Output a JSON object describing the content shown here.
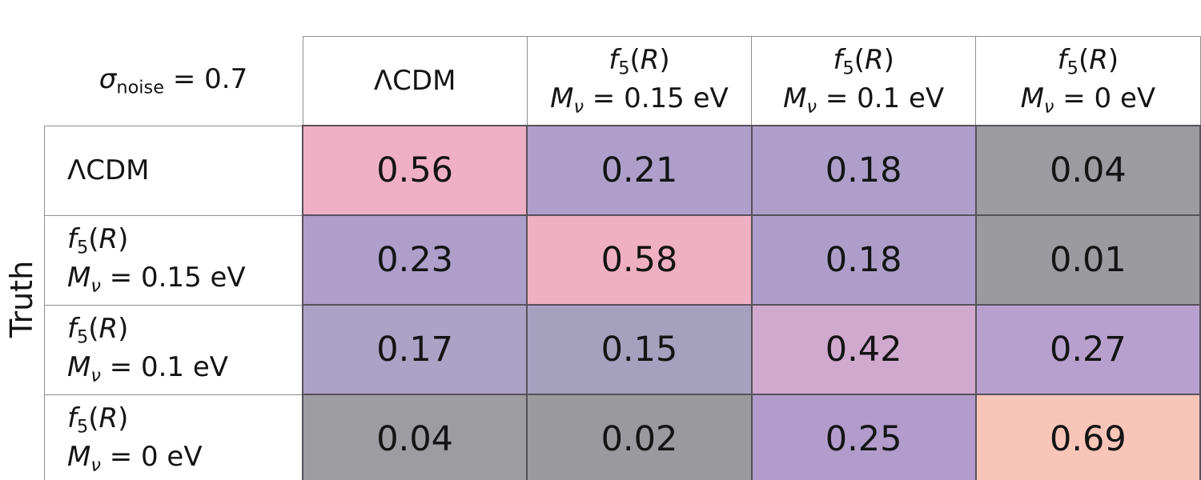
{
  "figure": {
    "truth_label": "Truth",
    "corner_title_segments": [
      {
        "t": "σ",
        "s": "i"
      },
      {
        "t": "noise",
        "s": "sub"
      },
      {
        "t": " = 0.7",
        "s": "n"
      }
    ],
    "columns": [
      {
        "segments": [
          {
            "t": "ΛCDM",
            "s": "n"
          }
        ]
      },
      {
        "segments": [
          {
            "t": "f",
            "s": "i"
          },
          {
            "t": "5",
            "s": "sub"
          },
          {
            "t": "(",
            "s": "n"
          },
          {
            "t": "R",
            "s": "i"
          },
          {
            "t": ")",
            "s": "n"
          },
          {
            "s": "br"
          },
          {
            "t": "M",
            "s": "i"
          },
          {
            "t": "ν",
            "s": "subi"
          },
          {
            "t": " = 0.15 eV",
            "s": "n"
          }
        ]
      },
      {
        "segments": [
          {
            "t": "f",
            "s": "i"
          },
          {
            "t": "5",
            "s": "sub"
          },
          {
            "t": "(",
            "s": "n"
          },
          {
            "t": "R",
            "s": "i"
          },
          {
            "t": ")",
            "s": "n"
          },
          {
            "s": "br"
          },
          {
            "t": "M",
            "s": "i"
          },
          {
            "t": "ν",
            "s": "subi"
          },
          {
            "t": " = 0.1 eV",
            "s": "n"
          }
        ]
      },
      {
        "segments": [
          {
            "t": "f",
            "s": "i"
          },
          {
            "t": "5",
            "s": "sub"
          },
          {
            "t": "(",
            "s": "n"
          },
          {
            "t": "R",
            "s": "i"
          },
          {
            "t": ")",
            "s": "n"
          },
          {
            "s": "br"
          },
          {
            "t": "M",
            "s": "i"
          },
          {
            "t": "ν",
            "s": "subi"
          },
          {
            "t": " = 0 eV",
            "s": "n"
          }
        ]
      }
    ],
    "rows": [
      {
        "label_segments": [
          {
            "t": "ΛCDM",
            "s": "n"
          }
        ],
        "cells": [
          {
            "value": "0.56",
            "bg": "#efb0c5"
          },
          {
            "value": "0.21",
            "bg": "#ae9fca"
          },
          {
            "value": "0.18",
            "bg": "#ad9fc9"
          },
          {
            "value": "0.04",
            "bg": "#9b9ba0"
          }
        ]
      },
      {
        "label_segments": [
          {
            "t": "f",
            "s": "i"
          },
          {
            "t": "5",
            "s": "sub"
          },
          {
            "t": "(",
            "s": "n"
          },
          {
            "t": "R",
            "s": "i"
          },
          {
            "t": ")",
            "s": "n"
          },
          {
            "s": "br"
          },
          {
            "t": "M",
            "s": "i"
          },
          {
            "t": "ν",
            "s": "subi"
          },
          {
            "t": " = 0.15 eV",
            "s": "n"
          }
        ],
        "cells": [
          {
            "value": "0.23",
            "bg": "#ae9eca"
          },
          {
            "value": "0.58",
            "bg": "#f0b0c4"
          },
          {
            "value": "0.18",
            "bg": "#ad9ec9"
          },
          {
            "value": "0.01",
            "bg": "#9a9a9f"
          }
        ]
      },
      {
        "label_segments": [
          {
            "t": "f",
            "s": "i"
          },
          {
            "t": "5",
            "s": "sub"
          },
          {
            "t": "(",
            "s": "n"
          },
          {
            "t": "R",
            "s": "i"
          },
          {
            "t": ")",
            "s": "n"
          },
          {
            "s": "br"
          },
          {
            "t": "M",
            "s": "i"
          },
          {
            "t": "ν",
            "s": "subi"
          },
          {
            "t": " = 0.1 eV",
            "s": "n"
          }
        ],
        "cells": [
          {
            "value": "0.17",
            "bg": "#aba3c5"
          },
          {
            "value": "0.15",
            "bg": "#a6a0bf"
          },
          {
            "value": "0.42",
            "bg": "#d0a9ce"
          },
          {
            "value": "0.27",
            "bg": "#b7a0cd"
          }
        ]
      },
      {
        "label_segments": [
          {
            "t": "f",
            "s": "i"
          },
          {
            "t": "5",
            "s": "sub"
          },
          {
            "t": "(",
            "s": "n"
          },
          {
            "t": "R",
            "s": "i"
          },
          {
            "t": ")",
            "s": "n"
          },
          {
            "s": "br"
          },
          {
            "t": "M",
            "s": "i"
          },
          {
            "t": "ν",
            "s": "subi"
          },
          {
            "t": " = 0 eV",
            "s": "n"
          }
        ],
        "cells": [
          {
            "value": "0.04",
            "bg": "#9c9ca1"
          },
          {
            "value": "0.02",
            "bg": "#99999e"
          },
          {
            "value": "0.25",
            "bg": "#b19ccb"
          },
          {
            "value": "0.69",
            "bg": "#fac5b9"
          }
        ]
      }
    ]
  },
  "chart_data": {
    "type": "heatmap",
    "title": "σ_noise = 0.7",
    "xlabel": "",
    "ylabel": "Truth",
    "columns": [
      "ΛCDM",
      "f5(R) Mν = 0.15 eV",
      "f5(R) Mν = 0.1 eV",
      "f5(R) Mν = 0 eV"
    ],
    "rows": [
      "ΛCDM",
      "f5(R) Mν = 0.15 eV",
      "f5(R) Mν = 0.1 eV",
      "f5(R) Mν = 0 eV"
    ],
    "values": [
      [
        0.56,
        0.21,
        0.18,
        0.04
      ],
      [
        0.23,
        0.58,
        0.18,
        0.01
      ],
      [
        0.17,
        0.15,
        0.42,
        0.27
      ],
      [
        0.04,
        0.02,
        0.25,
        0.69
      ]
    ],
    "value_range": [
      0,
      1
    ],
    "colormap_hint": {
      "low": "#99999e",
      "mid": "#ae9fca",
      "high": "#fac5b9"
    },
    "legend": "none",
    "grid": "table-borders"
  }
}
